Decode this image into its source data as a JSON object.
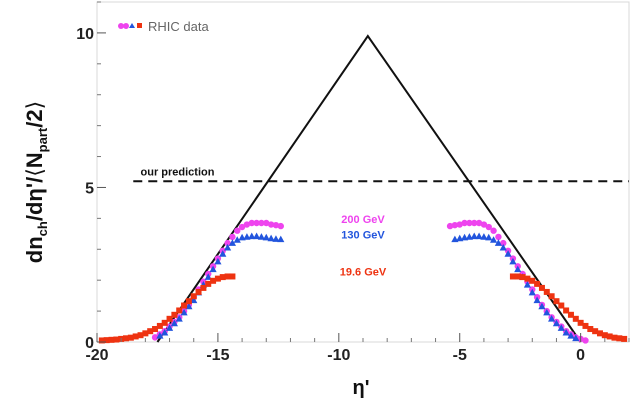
{
  "chart_data": {
    "type": "scatter",
    "xlabel": "η'",
    "ylabel_parts": {
      "main": "dn",
      "sub1": "ch",
      "mid": "/dη'/",
      "open": "⟨",
      "N": "N",
      "sub2": "part",
      "tail": "/2",
      "close": "⟩"
    },
    "xlim": [
      -20,
      2
    ],
    "ylim": [
      0,
      11
    ],
    "x_ticks": [
      "-20",
      "-15",
      "-10",
      "-5",
      "0"
    ],
    "x_tick_values": [
      -20,
      -15,
      -10,
      -5,
      0
    ],
    "y_ticks": [
      "0",
      "5",
      "10"
    ],
    "y_tick_values": [
      0,
      5,
      10
    ],
    "legend": {
      "label": "RHIC data",
      "colors": [
        "#ee44ee",
        "#2255dd",
        "#ee3311"
      ]
    },
    "prediction": {
      "label": "our prediction",
      "y": 5.2
    },
    "triangle": {
      "x": [
        -17.5,
        -8.8,
        0
      ],
      "y": [
        0,
        9.9,
        0
      ]
    },
    "annotations": [
      {
        "text": "200 GeV",
        "color": "#ee44ee",
        "x": -9.0,
        "y": 3.85
      },
      {
        "text": "130 GeV",
        "color": "#2255dd",
        "x": -9.0,
        "y": 3.35
      },
      {
        "text": "19.6 GeV",
        "color": "#ee3311",
        "x": -9.0,
        "y": 2.15
      }
    ],
    "series": [
      {
        "color": "#ee44ee",
        "marker": "circle",
        "x": [
          -17.6,
          -17.4,
          -17.2,
          -17.0,
          -16.8,
          -16.6,
          -16.4,
          -16.2,
          -16.0,
          -15.8,
          -15.6,
          -15.4,
          -15.2,
          -15.0,
          -14.8,
          -14.6,
          -14.4,
          -14.2,
          -14.0,
          -13.8,
          -13.6,
          -13.4,
          -13.2,
          -13.0,
          -12.8,
          -12.6,
          -12.4,
          -5.4,
          -5.2,
          -5.0,
          -4.8,
          -4.6,
          -4.4,
          -4.2,
          -4.0,
          -3.8,
          -3.6,
          -3.4,
          -3.2,
          -3.0,
          -2.8,
          -2.6,
          -2.4,
          -2.2,
          -2.0,
          -1.8,
          -1.6,
          -1.4,
          -1.2,
          -1.0,
          -0.8,
          -0.6,
          -0.4,
          -0.2,
          0.0,
          0.2
        ],
        "y": [
          0.15,
          0.25,
          0.35,
          0.5,
          0.65,
          0.8,
          1.0,
          1.2,
          1.45,
          1.7,
          1.95,
          2.2,
          2.45,
          2.7,
          2.95,
          3.2,
          3.4,
          3.6,
          3.72,
          3.8,
          3.85,
          3.85,
          3.85,
          3.85,
          3.8,
          3.78,
          3.75,
          3.75,
          3.78,
          3.8,
          3.85,
          3.85,
          3.85,
          3.85,
          3.8,
          3.72,
          3.6,
          3.4,
          3.2,
          2.95,
          2.7,
          2.45,
          2.2,
          1.95,
          1.7,
          1.45,
          1.2,
          1.0,
          0.8,
          0.65,
          0.5,
          0.35,
          0.25,
          0.15,
          0.1,
          0.05
        ]
      },
      {
        "color": "#2255dd",
        "marker": "triangle",
        "x": [
          -17.4,
          -17.2,
          -17.0,
          -16.8,
          -16.6,
          -16.4,
          -16.2,
          -16.0,
          -15.8,
          -15.6,
          -15.4,
          -15.2,
          -15.0,
          -14.8,
          -14.6,
          -14.4,
          -14.2,
          -14.0,
          -13.8,
          -13.6,
          -13.4,
          -13.2,
          -13.0,
          -12.8,
          -12.6,
          -12.4,
          -5.2,
          -5.0,
          -4.8,
          -4.6,
          -4.4,
          -4.2,
          -4.0,
          -3.8,
          -3.6,
          -3.4,
          -3.2,
          -3.0,
          -2.8,
          -2.6,
          -2.4,
          -2.2,
          -2.0,
          -1.8,
          -1.6,
          -1.4,
          -1.2,
          -1.0,
          -0.8,
          -0.6,
          -0.4,
          -0.2
        ],
        "y": [
          0.2,
          0.3,
          0.45,
          0.6,
          0.75,
          0.95,
          1.15,
          1.35,
          1.6,
          1.85,
          2.1,
          2.35,
          2.6,
          2.85,
          3.05,
          3.2,
          3.3,
          3.38,
          3.4,
          3.42,
          3.42,
          3.4,
          3.38,
          3.35,
          3.33,
          3.32,
          3.32,
          3.35,
          3.38,
          3.4,
          3.42,
          3.42,
          3.4,
          3.38,
          3.3,
          3.2,
          3.05,
          2.85,
          2.6,
          2.35,
          2.1,
          1.85,
          1.6,
          1.35,
          1.15,
          0.95,
          0.75,
          0.6,
          0.45,
          0.3,
          0.2,
          0.12
        ]
      },
      {
        "color": "#ee3311",
        "marker": "square",
        "x": [
          -19.8,
          -19.6,
          -19.4,
          -19.2,
          -19.0,
          -18.8,
          -18.6,
          -18.4,
          -18.2,
          -18.0,
          -17.8,
          -17.6,
          -17.4,
          -17.2,
          -17.0,
          -16.8,
          -16.6,
          -16.4,
          -16.2,
          -16.0,
          -15.8,
          -15.6,
          -15.4,
          -15.2,
          -15.0,
          -14.8,
          -14.6,
          -14.4,
          -2.8,
          -2.6,
          -2.4,
          -2.2,
          -2.0,
          -1.8,
          -1.6,
          -1.4,
          -1.2,
          -1.0,
          -0.8,
          -0.6,
          -0.4,
          -0.2,
          0.0,
          0.2,
          0.4,
          0.6,
          0.8,
          1.0,
          1.2,
          1.4,
          1.6,
          1.8
        ],
        "y": [
          0.05,
          0.06,
          0.07,
          0.08,
          0.1,
          0.12,
          0.14,
          0.18,
          0.22,
          0.28,
          0.35,
          0.42,
          0.52,
          0.62,
          0.75,
          0.88,
          1.02,
          1.18,
          1.32,
          1.48,
          1.62,
          1.75,
          1.88,
          1.98,
          2.05,
          2.1,
          2.12,
          2.12,
          2.12,
          2.12,
          2.1,
          2.05,
          1.98,
          1.88,
          1.75,
          1.62,
          1.48,
          1.32,
          1.18,
          1.02,
          0.88,
          0.75,
          0.62,
          0.52,
          0.42,
          0.35,
          0.28,
          0.22,
          0.18,
          0.14,
          0.12,
          0.1
        ]
      }
    ]
  }
}
